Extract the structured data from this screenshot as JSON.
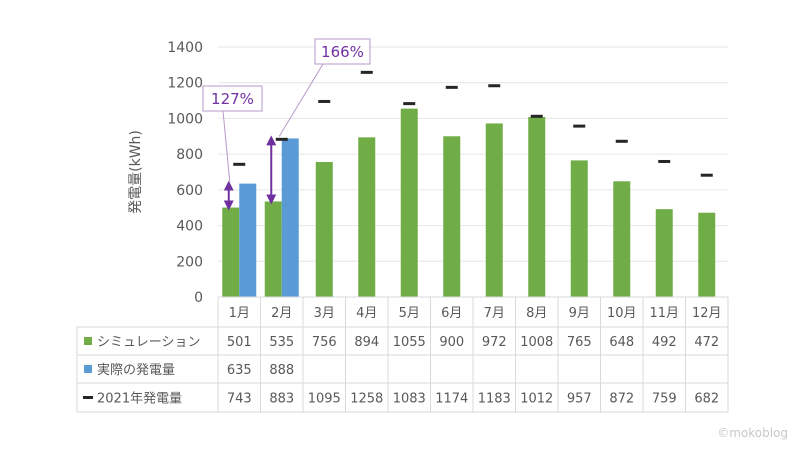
{
  "chart_data": {
    "type": "bar",
    "ylabel": "発電量(kWh)",
    "ylim": [
      0,
      1400
    ],
    "yticks": [
      0,
      200,
      400,
      600,
      800,
      1000,
      1200,
      1400
    ],
    "categories": [
      "1月",
      "2月",
      "3月",
      "4月",
      "5月",
      "6月",
      "7月",
      "8月",
      "9月",
      "10月",
      "11月",
      "12月"
    ],
    "series": [
      {
        "name": "シミュレーション",
        "kind": "bar",
        "color": "#70ad47",
        "values": [
          501,
          535,
          756,
          894,
          1055,
          900,
          972,
          1008,
          765,
          648,
          492,
          472
        ]
      },
      {
        "name": "実際の発電量",
        "kind": "bar",
        "color": "#5b9bd5",
        "values": [
          635,
          888,
          null,
          null,
          null,
          null,
          null,
          null,
          null,
          null,
          null,
          null
        ]
      },
      {
        "name": "2021年発電量",
        "kind": "marker",
        "color": "#262626",
        "values": [
          743,
          883,
          1095,
          1258,
          1083,
          1174,
          1183,
          1012,
          957,
          872,
          759,
          682
        ]
      }
    ],
    "annotations": [
      {
        "text": "127%",
        "month_index": 0,
        "from": 501,
        "to": 635,
        "color": "#7030a0"
      },
      {
        "text": "166%",
        "month_index": 1,
        "from": 535,
        "to": 888,
        "color": "#7030a0"
      }
    ],
    "grid": true,
    "data_table": true
  },
  "watermark": "©mokoblog"
}
